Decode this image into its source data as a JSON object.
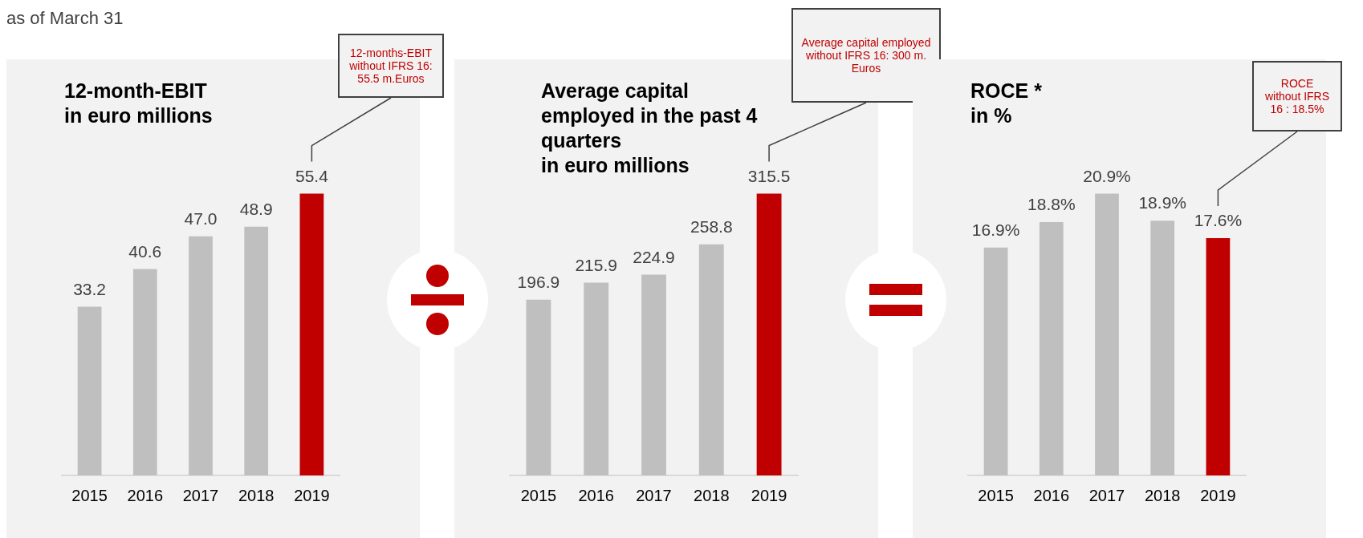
{
  "chart_data": [
    {
      "type": "bar",
      "subtitle": "as of March 31",
      "title": "12-month-EBIT\nin euro millions",
      "categories": [
        "2015",
        "2016",
        "2017",
        "2018",
        "2019"
      ],
      "values": [
        33.2,
        40.6,
        47.0,
        48.9,
        55.4
      ],
      "colors": [
        "#bfbfbf",
        "#bfbfbf",
        "#bfbfbf",
        "#bfbfbf",
        "#c00000"
      ],
      "value_labels": [
        "33.2",
        "40.6",
        "47.0",
        "48.9",
        "55.4"
      ],
      "grid": false,
      "legend": false,
      "tick_labels": "x",
      "annotations": [
        "12-months-EBIT without IFRS 16: 55.5 m.Euros"
      ]
    },
    {
      "type": "bar",
      "title": "Average capital\nemployed in the past 4\nquarters\nin euro millions",
      "categories": [
        "2015",
        "2016",
        "2017",
        "2018",
        "2019"
      ],
      "values": [
        196.9,
        215.9,
        224.9,
        258.8,
        315.5
      ],
      "colors": [
        "#bfbfbf",
        "#bfbfbf",
        "#bfbfbf",
        "#bfbfbf",
        "#c00000"
      ],
      "value_labels": [
        "196.9",
        "215.9",
        "224.9",
        "258.8",
        "315.5"
      ],
      "grid": false,
      "legend": false,
      "tick_labels": "x",
      "annotations": [
        "Average capital employed without IFRS 16: 300 m. Euros"
      ]
    },
    {
      "type": "bar",
      "title": "ROCE *\nin %",
      "categories": [
        "2015",
        "2016",
        "2017",
        "2018",
        "2019"
      ],
      "values": [
        16.9,
        18.8,
        20.9,
        18.9,
        17.6
      ],
      "colors": [
        "#bfbfbf",
        "#bfbfbf",
        "#bfbfbf",
        "#bfbfbf",
        "#c00000"
      ],
      "value_labels": [
        "16.9%",
        "18.8%",
        "20.9%",
        "18.9%",
        "17.6%"
      ],
      "grid": false,
      "legend": false,
      "tick_labels": "x",
      "annotations": [
        "ROCE without IFRS 16 : 18.5%"
      ]
    }
  ]
}
